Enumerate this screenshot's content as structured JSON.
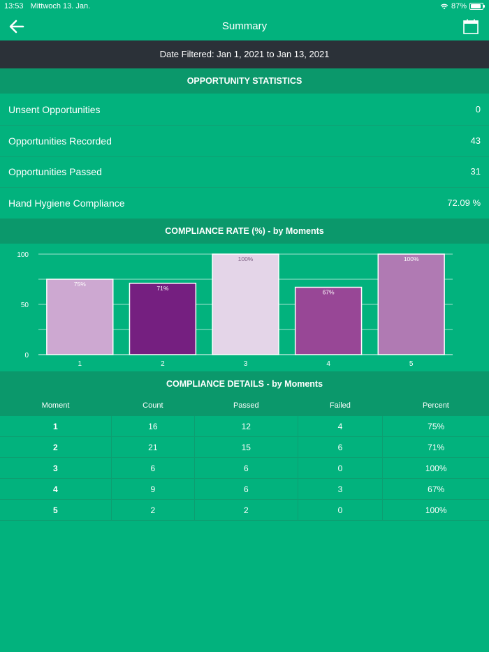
{
  "status_bar": {
    "time": "13:53",
    "date": "Mittwoch 13. Jan.",
    "battery": "87%"
  },
  "nav": {
    "title": "Summary",
    "back_icon": "arrow-left-icon",
    "calendar_icon": "calendar-icon"
  },
  "date_filter": "Date Filtered: Jan 1, 2021 to Jan 13, 2021",
  "opportunity_stats": {
    "header": "OPPORTUNITY STATISTICS",
    "rows": [
      {
        "label": "Unsent Opportunities",
        "value": "0"
      },
      {
        "label": "Opportunities Recorded",
        "value": "43"
      },
      {
        "label": "Opportunities Passed",
        "value": "31"
      },
      {
        "label": "Hand Hygiene Compliance",
        "value": "72.09 %"
      }
    ]
  },
  "compliance_rate": {
    "header": "COMPLIANCE RATE (%) - by Moments"
  },
  "chart_data": {
    "type": "bar",
    "title": "COMPLIANCE RATE (%) - by Moments",
    "categories": [
      "1",
      "2",
      "3",
      "4",
      "5"
    ],
    "values": [
      75,
      71,
      100,
      67,
      100
    ],
    "data_labels": [
      "75%",
      "71%",
      "100%",
      "67%",
      "100%"
    ],
    "bar_colors": [
      "#cda8d1",
      "#751f80",
      "#e4d5e8",
      "#984796",
      "#b07ab3"
    ],
    "yticks": [
      "0",
      "50",
      "100"
    ],
    "ylim": [
      0,
      100
    ],
    "xlabel": "",
    "ylabel": ""
  },
  "compliance_details": {
    "header": "COMPLIANCE DETAILS - by Moments",
    "columns": [
      "Moment",
      "Count",
      "Passed",
      "Failed",
      "Percent"
    ],
    "rows": [
      [
        "1",
        "16",
        "12",
        "4",
        "75%"
      ],
      [
        "2",
        "21",
        "15",
        "6",
        "71%"
      ],
      [
        "3",
        "6",
        "6",
        "0",
        "100%"
      ],
      [
        "4",
        "9",
        "6",
        "3",
        "67%"
      ],
      [
        "5",
        "2",
        "2",
        "0",
        "100%"
      ]
    ]
  },
  "colors": {
    "background": "#02b27d",
    "section_header": "#0b986b",
    "date_bar": "#2b3138"
  }
}
